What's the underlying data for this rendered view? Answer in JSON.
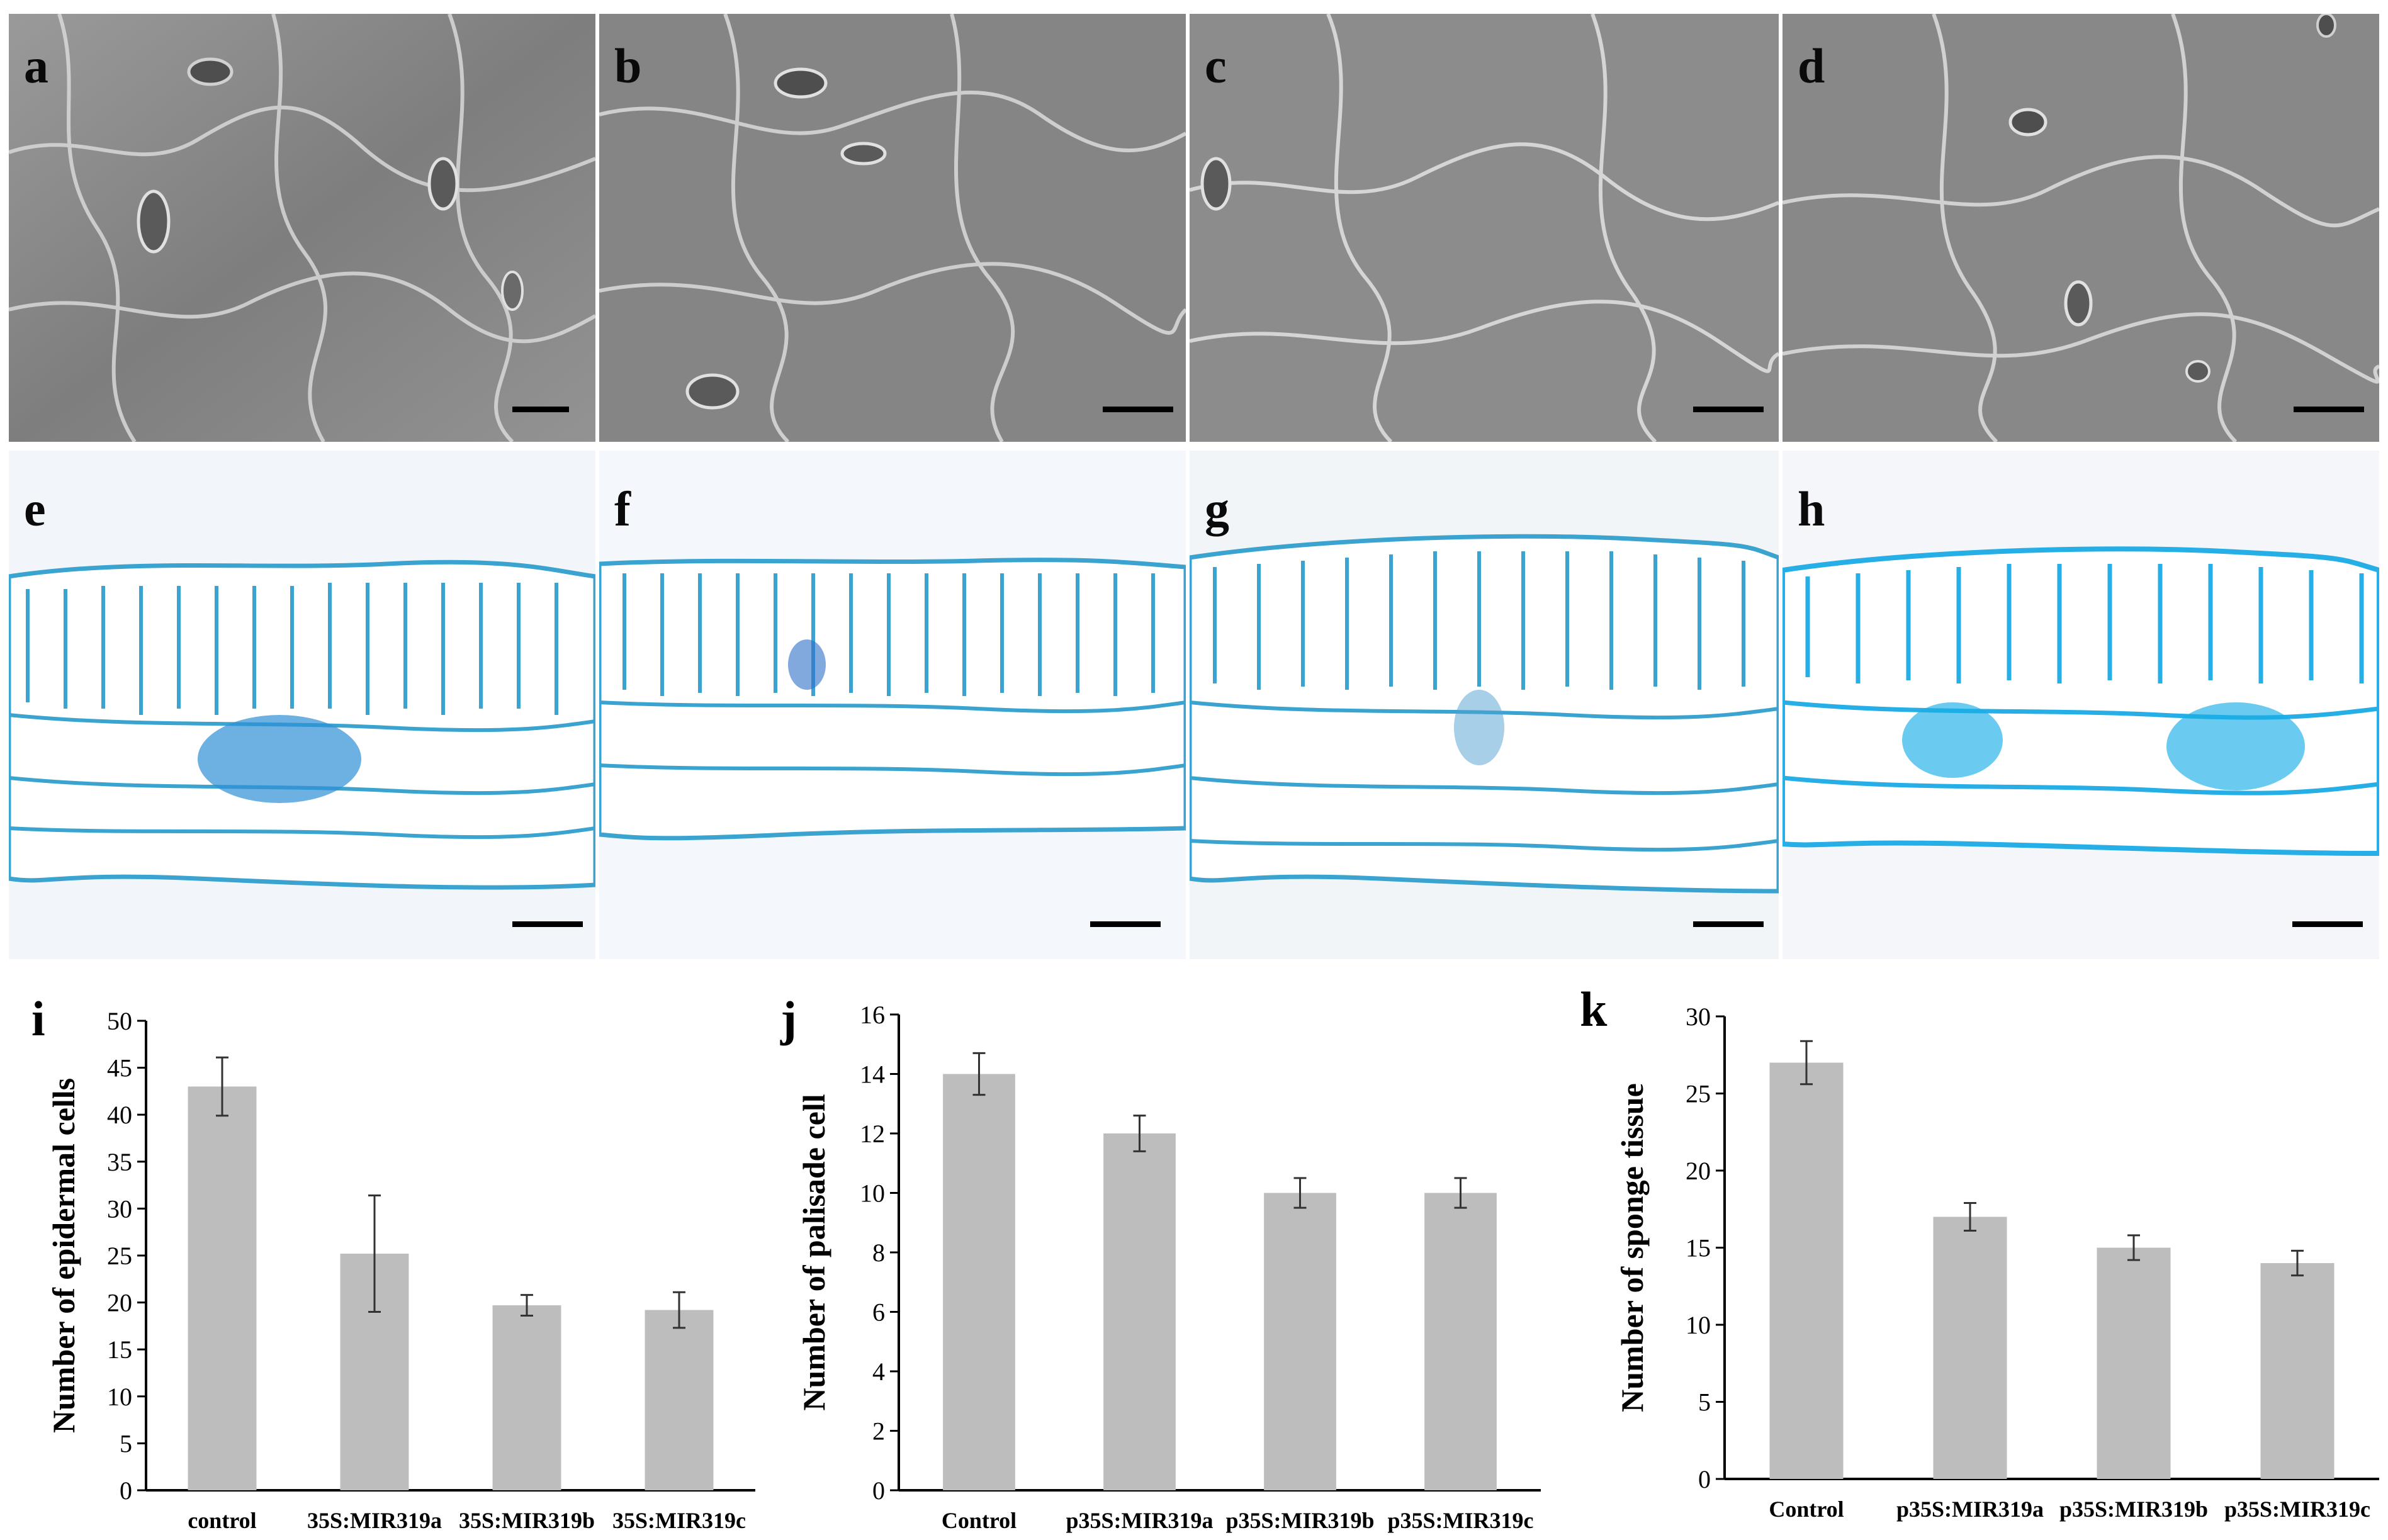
{
  "panels": {
    "sem": [
      "a",
      "b",
      "c",
      "d"
    ],
    "lm": [
      "e",
      "f",
      "g",
      "h"
    ]
  },
  "colors": {
    "bar": "#bdbdbd",
    "axis": "#000000",
    "sem_bg": "#8a8a8a",
    "lm_stain": "#2aa7d8",
    "lm_bg": "#f2f6fa"
  },
  "chart_data": [
    {
      "type": "bar",
      "panel_label": "i",
      "categories": [
        "control",
        "35S:MIR319a",
        "35S:MIR319b",
        "35S:MIR319c"
      ],
      "values": [
        43,
        25.2,
        19.7,
        19.2
      ],
      "errors": [
        3.1,
        6.2,
        1.1,
        1.9
      ],
      "ylabel": "Number of epidermal cells",
      "xlabel": "",
      "ylim": [
        0,
        50
      ],
      "yticks": [
        0,
        5,
        10,
        15,
        20,
        25,
        30,
        35,
        40,
        45,
        50
      ],
      "grid": false
    },
    {
      "type": "bar",
      "panel_label": "j",
      "categories": [
        "Control",
        "p35S:MIR319a",
        "p35S:MIR319b",
        "p35S:MIR319c"
      ],
      "values": [
        14,
        12,
        10,
        10
      ],
      "errors": [
        0.7,
        0.6,
        0.5,
        0.5
      ],
      "ylabel": "Number of palisade cell",
      "xlabel": "",
      "ylim": [
        0,
        16
      ],
      "yticks": [
        0,
        2,
        4,
        6,
        8,
        10,
        12,
        14,
        16
      ],
      "grid": false
    },
    {
      "type": "bar",
      "panel_label": "k",
      "categories": [
        "Control",
        "p35S:MIR319a",
        "p35S:MIR319b",
        "p35S:MIR319c"
      ],
      "values": [
        27,
        17,
        15,
        14
      ],
      "errors": [
        1.4,
        0.9,
        0.8,
        0.8
      ],
      "ylabel": "Number of sponge tissue",
      "xlabel": "",
      "ylim": [
        0,
        30
      ],
      "yticks": [
        0,
        5,
        10,
        15,
        20,
        25,
        30
      ],
      "grid": false
    }
  ]
}
